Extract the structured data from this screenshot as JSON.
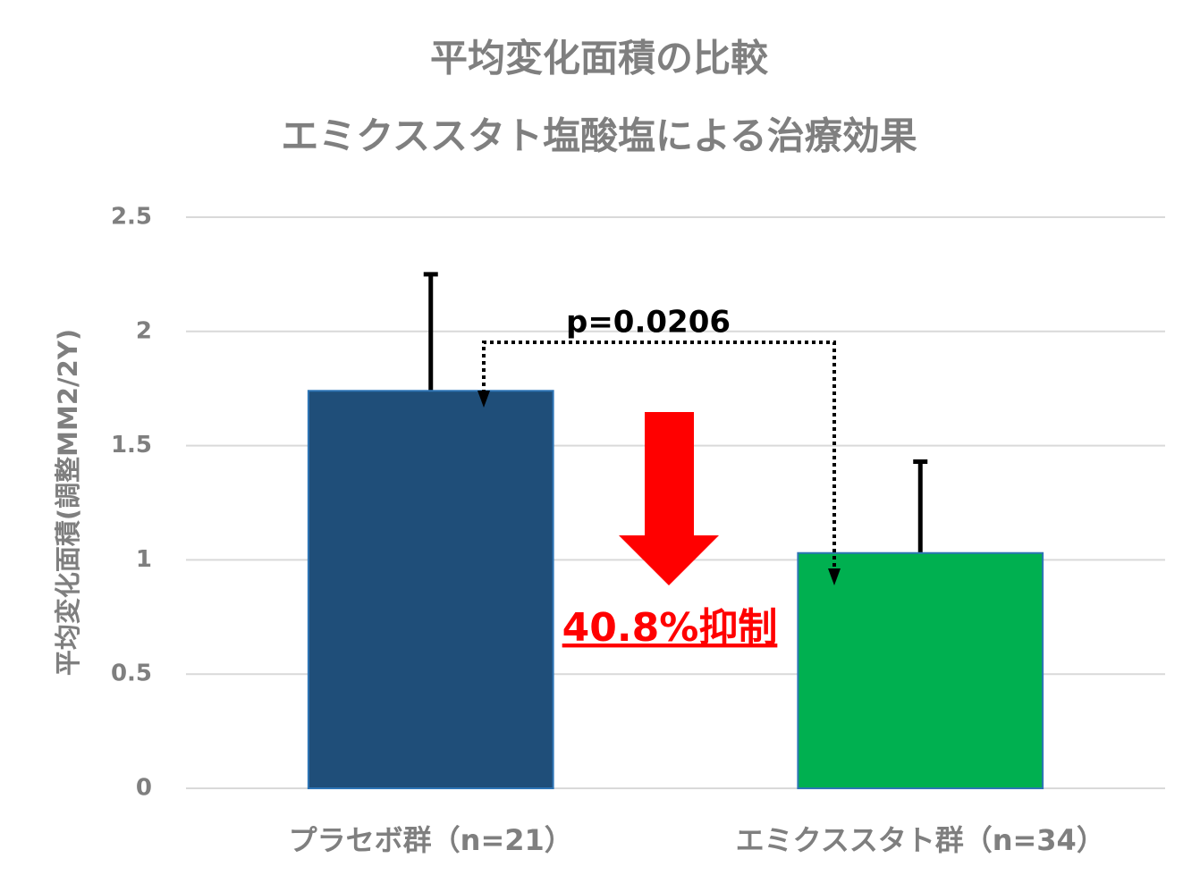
{
  "chart_data": {
    "type": "bar",
    "title": "平均変化面積の比較",
    "subtitle": "エミクススタト塩酸塩による治療効果",
    "y_label": "平均変化面積(調整MM2/2Y)",
    "categories": [
      "プラセボ群（n=21）",
      "エミクススタト群（n=34）"
    ],
    "values": [
      1.74,
      1.03
    ],
    "errors": [
      0.51,
      0.4
    ],
    "colors": [
      "#1f4e79",
      "#00b050"
    ],
    "ylim": [
      0,
      2.5
    ],
    "yticks": [
      0,
      0.5,
      1,
      1.5,
      2,
      2.5
    ],
    "grid": true,
    "annotations": [
      "p=0.0206",
      "40.8%抑制"
    ]
  }
}
